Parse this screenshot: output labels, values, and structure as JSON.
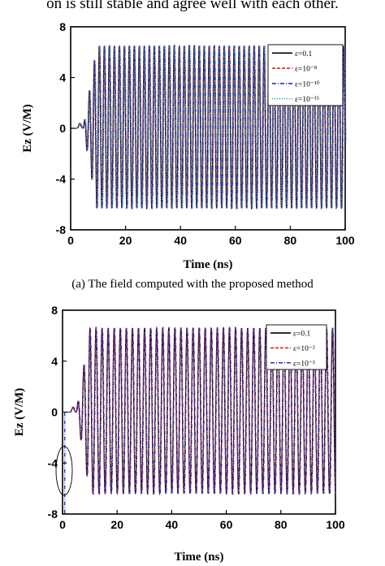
{
  "top_text": "on is still stable and agree well with each other.",
  "caption_a": "(a)    The field computed with the proposed method",
  "chart_data": [
    {
      "type": "line",
      "title": "",
      "xlabel": "Time (ns)",
      "ylabel": "Ez (V/M)",
      "xlim": [
        0,
        100
      ],
      "ylim": [
        -8,
        8
      ],
      "xticks": [
        "0",
        "20",
        "40",
        "60",
        "80",
        "100"
      ],
      "yticks": [
        "8",
        "4",
        "0",
        "-4",
        "-8"
      ],
      "legend_position": "top-right",
      "signal": {
        "onset_ns": 4.5,
        "amplitude_pos": 6.5,
        "amplitude_neg": -6.3,
        "cycles_per_ns": 0.55
      },
      "series": [
        {
          "name": "ε=0.1",
          "color": "#000000",
          "style": "solid"
        },
        {
          "name": "ε=10⁻⁸",
          "color": "#e02020",
          "style": "dash"
        },
        {
          "name": "ε=10⁻¹⁰",
          "color": "#2030d0",
          "style": "dashdot"
        },
        {
          "name": "ε=10⁻¹⁵",
          "color": "#20a0c0",
          "style": "dot"
        }
      ]
    },
    {
      "type": "line",
      "title": "",
      "xlabel": "Time (ns)",
      "ylabel": "Ez (V/M)",
      "xlim": [
        0,
        100
      ],
      "ylim": [
        -8,
        8
      ],
      "xticks": [
        "0",
        "20",
        "40",
        "60",
        "80",
        "100"
      ],
      "yticks": [
        "8",
        "4",
        "0",
        "-4",
        "-8"
      ],
      "legend_position": "top-right",
      "signal": {
        "onset_ns": 5,
        "amplitude_pos": 6.6,
        "amplitude_neg": -6.4,
        "cycles_per_ns": 0.45
      },
      "series": [
        {
          "name": "ε=0.1",
          "color": "#000000",
          "style": "solid"
        },
        {
          "name": "ε=10⁻²",
          "color": "#e02020",
          "style": "dash"
        },
        {
          "name": "ε=10⁻³",
          "color": "#2030d0",
          "style": "dashdot"
        }
      ],
      "annotation": "ellipse near t=0 highlighting divergence of ε=10⁻³"
    }
  ]
}
